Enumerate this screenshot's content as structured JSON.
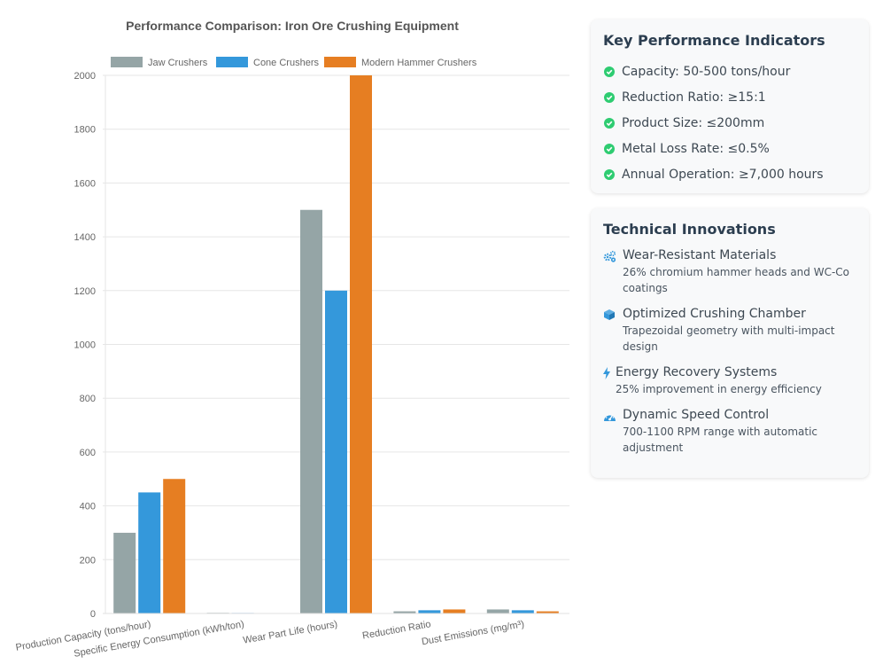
{
  "chart_data": {
    "type": "bar",
    "title": "Performance Comparison: Iron Ore Crushing Equipment",
    "categories": [
      "Production Capacity (tons/hour)",
      "Specific Energy Consumption (kWh/ton)",
      "Wear Part Life (hours)",
      "Reduction Ratio",
      "Dust Emissions (mg/m³)"
    ],
    "series": [
      {
        "name": "Jaw Crushers",
        "color": "#95a5a6",
        "values": [
          300,
          2.5,
          1500,
          8,
          15
        ]
      },
      {
        "name": "Cone Crushers",
        "color": "#3498db",
        "values": [
          450,
          2.0,
          1200,
          12,
          12
        ]
      },
      {
        "name": "Modern Hammer Crushers",
        "color": "#e67e22",
        "values": [
          500,
          1.5,
          2000,
          15,
          8
        ]
      }
    ],
    "ylim": [
      0,
      2000
    ],
    "yticks": [
      "0",
      "200",
      "400",
      "600",
      "800",
      "1000",
      "1200",
      "1400",
      "1600",
      "1800",
      "2000"
    ],
    "grid": true,
    "legend": "top"
  },
  "kpi": {
    "title": "Key Performance Indicators",
    "items": [
      "Capacity: 50-500 tons/hour",
      "Reduction Ratio: ≥15:1",
      "Product Size: ≤200mm",
      "Metal Loss Rate: ≤0.5%",
      "Annual Operation: ≥7,000 hours"
    ]
  },
  "innovations": {
    "title": "Technical Innovations",
    "items": [
      {
        "icon": "gears-icon",
        "title": "Wear-Resistant Materials",
        "desc": "26% chromium hammer heads and WC-Co coatings"
      },
      {
        "icon": "cube-icon",
        "title": "Optimized Crushing Chamber",
        "desc": "Trapezoidal geometry with multi-impact design"
      },
      {
        "icon": "bolt-icon",
        "title": "Energy Recovery Systems",
        "desc": "25% improvement in energy efficiency"
      },
      {
        "icon": "speedometer-icon",
        "title": "Dynamic Speed Control",
        "desc": "700-1100 RPM range with automatic adjustment"
      }
    ],
    "icon_color": "#3498db"
  }
}
